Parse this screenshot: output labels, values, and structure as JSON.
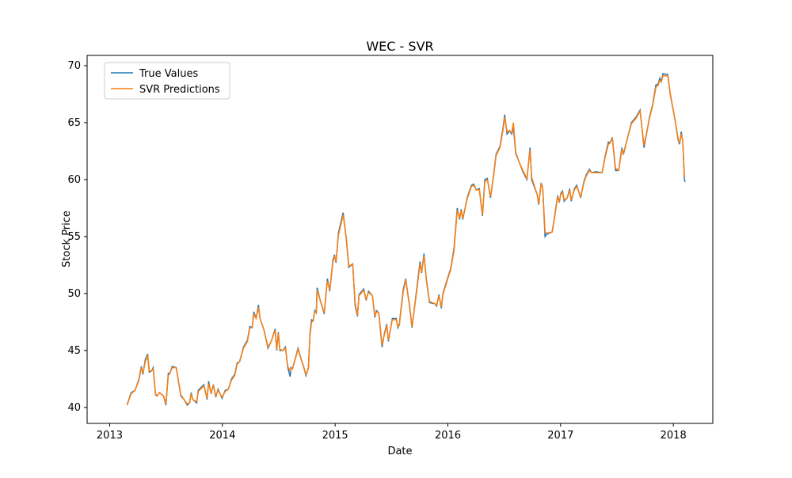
{
  "chart_data": {
    "type": "line",
    "title": "WEC - SVR",
    "x_label": "Date",
    "y_label": "Stock Price",
    "x": [
      2013.154,
      2013.19,
      2013.225,
      2013.26,
      2013.281,
      2013.295,
      2013.316,
      2013.337,
      2013.351,
      2013.372,
      2013.386,
      2013.407,
      2013.421,
      2013.442,
      2013.478,
      2013.499,
      2013.52,
      2013.534,
      2013.555,
      2013.59,
      2013.632,
      2013.66,
      2013.688,
      2013.709,
      2013.723,
      2013.737,
      2013.772,
      2013.786,
      2013.815,
      2013.836,
      2013.864,
      2013.878,
      2013.899,
      2013.92,
      2013.941,
      2013.962,
      2013.997,
      2014.025,
      2014.053,
      2014.081,
      2014.109,
      2014.131,
      2014.152,
      2014.187,
      2014.222,
      2014.243,
      2014.264,
      2014.278,
      2014.299,
      2014.32,
      2014.334,
      2014.369,
      2014.404,
      2014.433,
      2014.468,
      2014.482,
      2014.496,
      2014.51,
      2014.538,
      2014.559,
      2014.58,
      2014.601,
      2014.608,
      2014.622,
      2014.671,
      2014.699,
      2014.72,
      2014.741,
      2014.763,
      2014.777,
      2014.791,
      2014.805,
      2014.819,
      2014.833,
      2014.84,
      2014.868,
      2014.903,
      2014.931,
      2014.952,
      2014.98,
      2014.994,
      2015.008,
      2015.029,
      2015.071,
      2015.1,
      2015.121,
      2015.156,
      2015.177,
      2015.198,
      2015.212,
      2015.254,
      2015.275,
      2015.296,
      2015.331,
      2015.352,
      2015.366,
      2015.387,
      2015.416,
      2015.437,
      2015.458,
      2015.472,
      2015.507,
      2015.542,
      2015.556,
      2015.57,
      2015.577,
      2015.605,
      2015.626,
      2015.661,
      2015.682,
      2015.725,
      2015.753,
      2015.767,
      2015.788,
      2015.809,
      2015.837,
      2015.886,
      2015.9,
      2015.921,
      2015.942,
      2015.956,
      2016.012,
      2016.026,
      2016.055,
      2016.083,
      2016.104,
      2016.118,
      2016.132,
      2016.174,
      2016.209,
      2016.23,
      2016.251,
      2016.279,
      2016.307,
      2016.328,
      2016.35,
      2016.378,
      2016.406,
      2016.427,
      2016.462,
      2016.49,
      2016.504,
      2016.525,
      2016.546,
      2016.567,
      2016.581,
      2016.602,
      2016.63,
      2016.665,
      2016.701,
      2016.729,
      2016.743,
      2016.792,
      2016.806,
      2016.827,
      2016.841,
      2016.862,
      2016.876,
      2016.925,
      2016.946,
      2016.974,
      2016.988,
      2017.003,
      2017.017,
      2017.031,
      2017.059,
      2017.08,
      2017.094,
      2017.122,
      2017.143,
      2017.178,
      2017.206,
      2017.227,
      2017.255,
      2017.276,
      2017.312,
      2017.368,
      2017.396,
      2017.424,
      2017.438,
      2017.459,
      2017.487,
      2017.515,
      2017.543,
      2017.557,
      2017.628,
      2017.67,
      2017.705,
      2017.74,
      2017.789,
      2017.817,
      2017.845,
      2017.866,
      2017.88,
      2017.894,
      2017.908,
      2017.951,
      2017.972,
      2018.014,
      2018.042,
      2018.056,
      2018.07,
      2018.084,
      2018.098,
      2018.105
    ],
    "series": [
      {
        "name": "True Values",
        "color": "#1f77b4",
        "values": [
          40.2,
          41.3,
          41.5,
          42.5,
          43.6,
          42.9,
          44.2,
          44.7,
          43.1,
          43.2,
          43.5,
          41.1,
          41.0,
          41.3,
          41.0,
          40.2,
          43.0,
          43.0,
          43.6,
          43.5,
          41.0,
          40.7,
          40.2,
          40.4,
          41.3,
          40.7,
          40.4,
          41.5,
          41.8,
          42.0,
          40.7,
          42.3,
          41.2,
          42.0,
          40.9,
          41.6,
          40.8,
          41.5,
          41.6,
          42.5,
          42.9,
          43.9,
          44.0,
          45.3,
          45.9,
          47.1,
          47.0,
          48.4,
          47.8,
          49.0,
          47.8,
          46.8,
          45.2,
          45.8,
          46.9,
          45.0,
          46.6,
          45.0,
          45.0,
          45.3,
          43.5,
          42.7,
          43.5,
          43.4,
          45.2,
          44.2,
          43.6,
          42.8,
          43.5,
          46.5,
          47.7,
          47.6,
          48.5,
          48.3,
          50.5,
          49.4,
          48.2,
          51.3,
          50.2,
          52.9,
          53.4,
          52.7,
          55.3,
          57.1,
          54.7,
          52.3,
          52.6,
          49.0,
          48.0,
          49.9,
          50.4,
          49.4,
          50.2,
          49.8,
          47.9,
          48.5,
          48.3,
          45.3,
          46.5,
          47.3,
          45.8,
          47.8,
          47.8,
          47.0,
          47.3,
          48.0,
          50.4,
          51.3,
          48.8,
          47.0,
          50.5,
          52.8,
          51.8,
          53.5,
          51.2,
          49.2,
          49.1,
          48.9,
          49.9,
          48.7,
          50.0,
          51.8,
          52.2,
          54.0,
          57.5,
          56.5,
          57.4,
          56.5,
          58.5,
          59.5,
          59.6,
          59.1,
          59.2,
          56.8,
          60.0,
          60.1,
          58.4,
          60.4,
          62.2,
          62.9,
          64.6,
          65.7,
          64.0,
          64.3,
          64.0,
          64.6,
          62.3,
          61.6,
          60.7,
          60.0,
          62.8,
          60.0,
          58.7,
          57.8,
          59.7,
          59.3,
          55.0,
          55.2,
          55.4,
          56.7,
          58.6,
          58.0,
          58.8,
          59.0,
          58.1,
          58.4,
          59.2,
          58.1,
          59.2,
          59.5,
          58.4,
          59.8,
          60.4,
          60.9,
          60.6,
          60.7,
          60.6,
          62.1,
          63.3,
          63.2,
          63.7,
          60.8,
          60.8,
          62.8,
          62.2,
          65.0,
          65.5,
          66.1,
          62.8,
          65.5,
          66.6,
          68.3,
          68.4,
          68.9,
          68.6,
          69.3,
          69.2,
          67.5,
          65.3,
          63.5,
          63.1,
          64.2,
          63.3,
          60.0,
          59.8
        ]
      },
      {
        "name": "SVR Predictions",
        "color": "#ff7f0e",
        "values": [
          40.2,
          41.2,
          41.5,
          42.4,
          43.5,
          43.0,
          44.0,
          44.6,
          43.2,
          43.2,
          43.4,
          41.2,
          41.0,
          41.3,
          41.0,
          40.3,
          42.8,
          43.0,
          43.5,
          43.5,
          41.1,
          40.7,
          40.3,
          40.4,
          41.2,
          40.7,
          40.5,
          41.4,
          41.7,
          41.9,
          40.8,
          42.1,
          41.3,
          41.9,
          41.0,
          41.5,
          40.9,
          41.4,
          41.6,
          42.4,
          42.8,
          43.8,
          44.0,
          45.2,
          45.8,
          47.0,
          47.0,
          48.2,
          47.8,
          48.8,
          47.8,
          46.8,
          45.3,
          45.8,
          46.8,
          45.1,
          46.5,
          45.1,
          45.0,
          45.2,
          43.6,
          43.2,
          43.4,
          43.4,
          45.1,
          44.2,
          43.6,
          42.9,
          43.4,
          46.3,
          47.5,
          47.6,
          48.4,
          48.3,
          50.3,
          49.4,
          48.3,
          51.1,
          50.3,
          52.7,
          53.3,
          52.8,
          55.1,
          56.9,
          54.8,
          52.4,
          52.6,
          49.2,
          48.1,
          49.8,
          50.3,
          49.5,
          50.1,
          49.8,
          48.0,
          48.4,
          48.3,
          45.5,
          46.4,
          47.2,
          45.9,
          47.7,
          47.7,
          47.1,
          47.2,
          47.9,
          50.2,
          51.2,
          48.9,
          47.1,
          50.3,
          52.6,
          51.9,
          53.3,
          51.3,
          49.3,
          49.1,
          49.0,
          49.8,
          48.8,
          49.9,
          51.7,
          52.1,
          53.8,
          57.3,
          56.6,
          57.3,
          56.6,
          58.4,
          59.4,
          59.5,
          59.1,
          59.1,
          56.9,
          59.8,
          60.0,
          58.5,
          60.3,
          62.1,
          62.8,
          64.4,
          65.5,
          64.2,
          64.3,
          64.1,
          65.0,
          62.4,
          61.6,
          60.8,
          60.1,
          62.6,
          60.2,
          58.7,
          57.9,
          59.6,
          59.3,
          55.4,
          55.3,
          55.4,
          56.6,
          58.5,
          58.1,
          58.7,
          58.9,
          58.2,
          58.4,
          59.1,
          58.2,
          59.1,
          59.4,
          58.5,
          59.7,
          60.3,
          60.8,
          60.6,
          60.6,
          60.6,
          62.0,
          63.1,
          63.2,
          63.6,
          61.0,
          60.8,
          62.6,
          62.3,
          64.9,
          65.4,
          66.0,
          63.0,
          65.4,
          66.5,
          68.1,
          68.3,
          68.7,
          68.6,
          69.1,
          69.1,
          67.6,
          65.3,
          63.6,
          63.2,
          64.0,
          63.4,
          60.3,
          60.3
        ]
      }
    ],
    "xlim": [
      2012.8,
      2018.35
    ],
    "xticks": [
      2013,
      2014,
      2015,
      2016,
      2017,
      2018
    ],
    "ylim": [
      38.6,
      70.9
    ],
    "yticks": [
      40,
      45,
      50,
      55,
      60,
      65,
      70
    ],
    "legend": "upper left",
    "grid": false
  }
}
